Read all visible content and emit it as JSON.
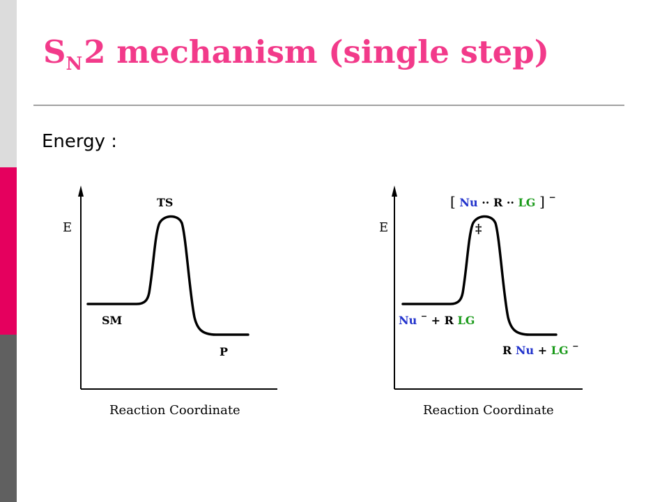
{
  "slide": {
    "title_main": "S",
    "title_sub": "N",
    "title_rest": "2 mechanism (single step)",
    "heading": "Energy :"
  },
  "colors": {
    "title": "#f23a8a",
    "nucleophile": "#2233cc",
    "leaving_group": "#1a9a1a",
    "sidebar_top": "#dcdcdc",
    "sidebar_mid": "#e5005e",
    "sidebar_bottom": "#606060"
  },
  "diagram_left": {
    "y_label": "E",
    "x_label": "Reaction Coordinate",
    "ts_label": "TS",
    "start_label": "SM",
    "product_label": "P"
  },
  "diagram_right": {
    "y_label": "E",
    "x_label": "Reaction Coordinate",
    "ts": {
      "bracket_open": "[",
      "nu": "Nu",
      "dots1": "··",
      "r": "R",
      "dots2": "··",
      "lg": "LG",
      "bracket_close": "]",
      "charge": "−",
      "dagger": "‡"
    },
    "reactants": {
      "nu": "Nu",
      "charge": "−",
      "plus": "+",
      "r": "R",
      "lg": "LG"
    },
    "products": {
      "r": "R",
      "nu": "Nu",
      "plus": "+",
      "lg": "LG",
      "charge": "−"
    }
  }
}
